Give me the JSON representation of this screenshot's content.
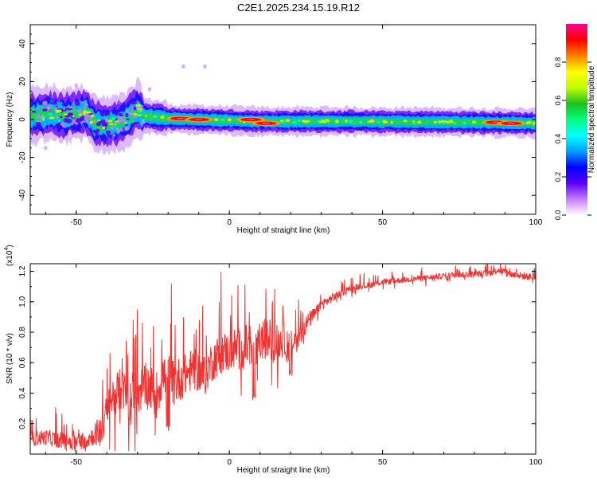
{
  "title": "C2E1.2025.234.15.19.R12",
  "chart_data": [
    {
      "type": "heatmap",
      "title": "C2E1.2025.234.15.19.R12",
      "xlabel": "Height of straight line (km)",
      "ylabel": "Frequency (Hz)",
      "xlim": [
        -65,
        100
      ],
      "ylim": [
        -50,
        50
      ],
      "xticks": [
        -50,
        0,
        50,
        100
      ],
      "yticks": [
        40,
        20,
        0,
        -20,
        -40
      ],
      "ridge": [
        {
          "x": -64,
          "f": 2.0
        },
        {
          "x": -58,
          "f": 3.5
        },
        {
          "x": -54,
          "f": 1.5
        },
        {
          "x": -50,
          "f": 3.0
        },
        {
          "x": -47,
          "f": 4.0
        },
        {
          "x": -44,
          "f": -2.0
        },
        {
          "x": -40,
          "f": -3.0
        },
        {
          "x": -36,
          "f": -2.0
        },
        {
          "x": -33,
          "f": 1.0
        },
        {
          "x": -30,
          "f": 6.0
        },
        {
          "x": -28,
          "f": 2.0
        },
        {
          "x": -20,
          "f": 0.5
        },
        {
          "x": -10,
          "f": 0.0
        },
        {
          "x": 10,
          "f": -1.0
        },
        {
          "x": 40,
          "f": -1.0
        },
        {
          "x": 80,
          "f": -1.5
        },
        {
          "x": 100,
          "f": -2.0
        }
      ],
      "hotspots": [
        {
          "x": -16,
          "f": 0.5
        },
        {
          "x": -10,
          "f": 0.0
        },
        {
          "x": 7,
          "f": 0.0
        },
        {
          "x": 12,
          "f": -2.0
        },
        {
          "x": 87,
          "f": -1.5
        },
        {
          "x": 92,
          "f": -2.0
        }
      ],
      "scatter_points": [
        {
          "x": -58,
          "f": 12
        },
        {
          "x": -50,
          "f": 18
        },
        {
          "x": -26,
          "f": 16
        },
        {
          "x": -15,
          "f": 28
        },
        {
          "x": -8,
          "f": 28
        },
        {
          "x": -60,
          "f": -15
        },
        {
          "x": -36,
          "f": 9
        },
        {
          "x": -24,
          "f": -6
        }
      ],
      "colorbar": {
        "label": "Normalized spectral amplitude",
        "range": [
          0,
          1
        ],
        "ticks": [
          0.0,
          0.2,
          0.4,
          0.6,
          0.8
        ],
        "tick_labels": [
          "0.0",
          "0.2",
          "0.4",
          "0.6",
          "0.8"
        ],
        "colors": [
          "#ffffff",
          "#c77dff",
          "#5a00ff",
          "#0000ff",
          "#00a0ff",
          "#00ffff",
          "#00ff80",
          "#20c020",
          "#c0ff00",
          "#ffff00",
          "#ff8000",
          "#ff0000",
          "#ff0090"
        ]
      }
    },
    {
      "type": "line",
      "xlabel": "Height of straight line (km)",
      "ylabel": "SNR (10 * v/v)",
      "y_multiplier_base": "(x10",
      "y_multiplier_exp": "4",
      "y_multiplier_end": ")",
      "xlim": [
        -65,
        100
      ],
      "ylim": [
        0.0,
        1.25
      ],
      "xticks": [
        -50,
        0,
        50,
        100
      ],
      "yticks": [
        0.2,
        0.4,
        0.6,
        0.8,
        1.0,
        1.2
      ],
      "ytick_labels": [
        "0.2",
        "0.4",
        "0.6",
        "0.8",
        "1.0",
        "1.2"
      ],
      "color": "#ee3333",
      "series": [
        {
          "name": "SNR",
          "points": [
            [
              -65,
              0.1
            ],
            [
              -60,
              0.11
            ],
            [
              -55,
              0.09
            ],
            [
              -50,
              0.08
            ],
            [
              -46,
              0.1
            ],
            [
              -42,
              0.16
            ],
            [
              -40,
              0.26
            ],
            [
              -38,
              0.38
            ],
            [
              -36,
              0.42
            ],
            [
              -34,
              0.4
            ],
            [
              -32,
              0.33
            ],
            [
              -30,
              0.4
            ],
            [
              -28,
              0.45
            ],
            [
              -26,
              0.44
            ],
            [
              -24,
              0.38
            ],
            [
              -22,
              0.5
            ],
            [
              -20,
              0.52
            ],
            [
              -18,
              0.46
            ],
            [
              -16,
              0.5
            ],
            [
              -14,
              0.52
            ],
            [
              -12,
              0.56
            ],
            [
              -10,
              0.54
            ],
            [
              -8,
              0.52
            ],
            [
              -6,
              0.6
            ],
            [
              -4,
              0.64
            ],
            [
              -2,
              0.68
            ],
            [
              0,
              0.66
            ],
            [
              2,
              0.7
            ],
            [
              4,
              0.68
            ],
            [
              6,
              0.72
            ],
            [
              8,
              0.6
            ],
            [
              10,
              0.74
            ],
            [
              12,
              0.76
            ],
            [
              14,
              0.72
            ],
            [
              16,
              0.74
            ],
            [
              18,
              0.75
            ],
            [
              20,
              0.7
            ],
            [
              22,
              0.76
            ],
            [
              24,
              0.82
            ],
            [
              26,
              0.88
            ],
            [
              28,
              0.92
            ],
            [
              30,
              0.98
            ],
            [
              34,
              1.03
            ],
            [
              38,
              1.07
            ],
            [
              42,
              1.1
            ],
            [
              46,
              1.11
            ],
            [
              50,
              1.13
            ],
            [
              55,
              1.14
            ],
            [
              60,
              1.15
            ],
            [
              65,
              1.16
            ],
            [
              70,
              1.17
            ],
            [
              75,
              1.18
            ],
            [
              80,
              1.18
            ],
            [
              85,
              1.19
            ],
            [
              88,
              1.21
            ],
            [
              92,
              1.18
            ],
            [
              96,
              1.17
            ],
            [
              100,
              1.16
            ]
          ],
          "noise_amplitude": [
            [
              -65,
              0.08
            ],
            [
              -45,
              0.1
            ],
            [
              -40,
              0.22
            ],
            [
              -30,
              0.25
            ],
            [
              -20,
              0.26
            ],
            [
              -10,
              0.22
            ],
            [
              0,
              0.22
            ],
            [
              8,
              0.25
            ],
            [
              15,
              0.2
            ],
            [
              20,
              0.18
            ],
            [
              25,
              0.1
            ],
            [
              30,
              0.06
            ],
            [
              40,
              0.035
            ],
            [
              60,
              0.03
            ],
            [
              80,
              0.035
            ],
            [
              100,
              0.04
            ]
          ],
          "dips": [
            {
              "x": 8,
              "y": 0.35
            },
            {
              "x": 20,
              "y": 0.5
            },
            {
              "x": -20,
              "y": 0.15
            }
          ]
        }
      ]
    }
  ]
}
